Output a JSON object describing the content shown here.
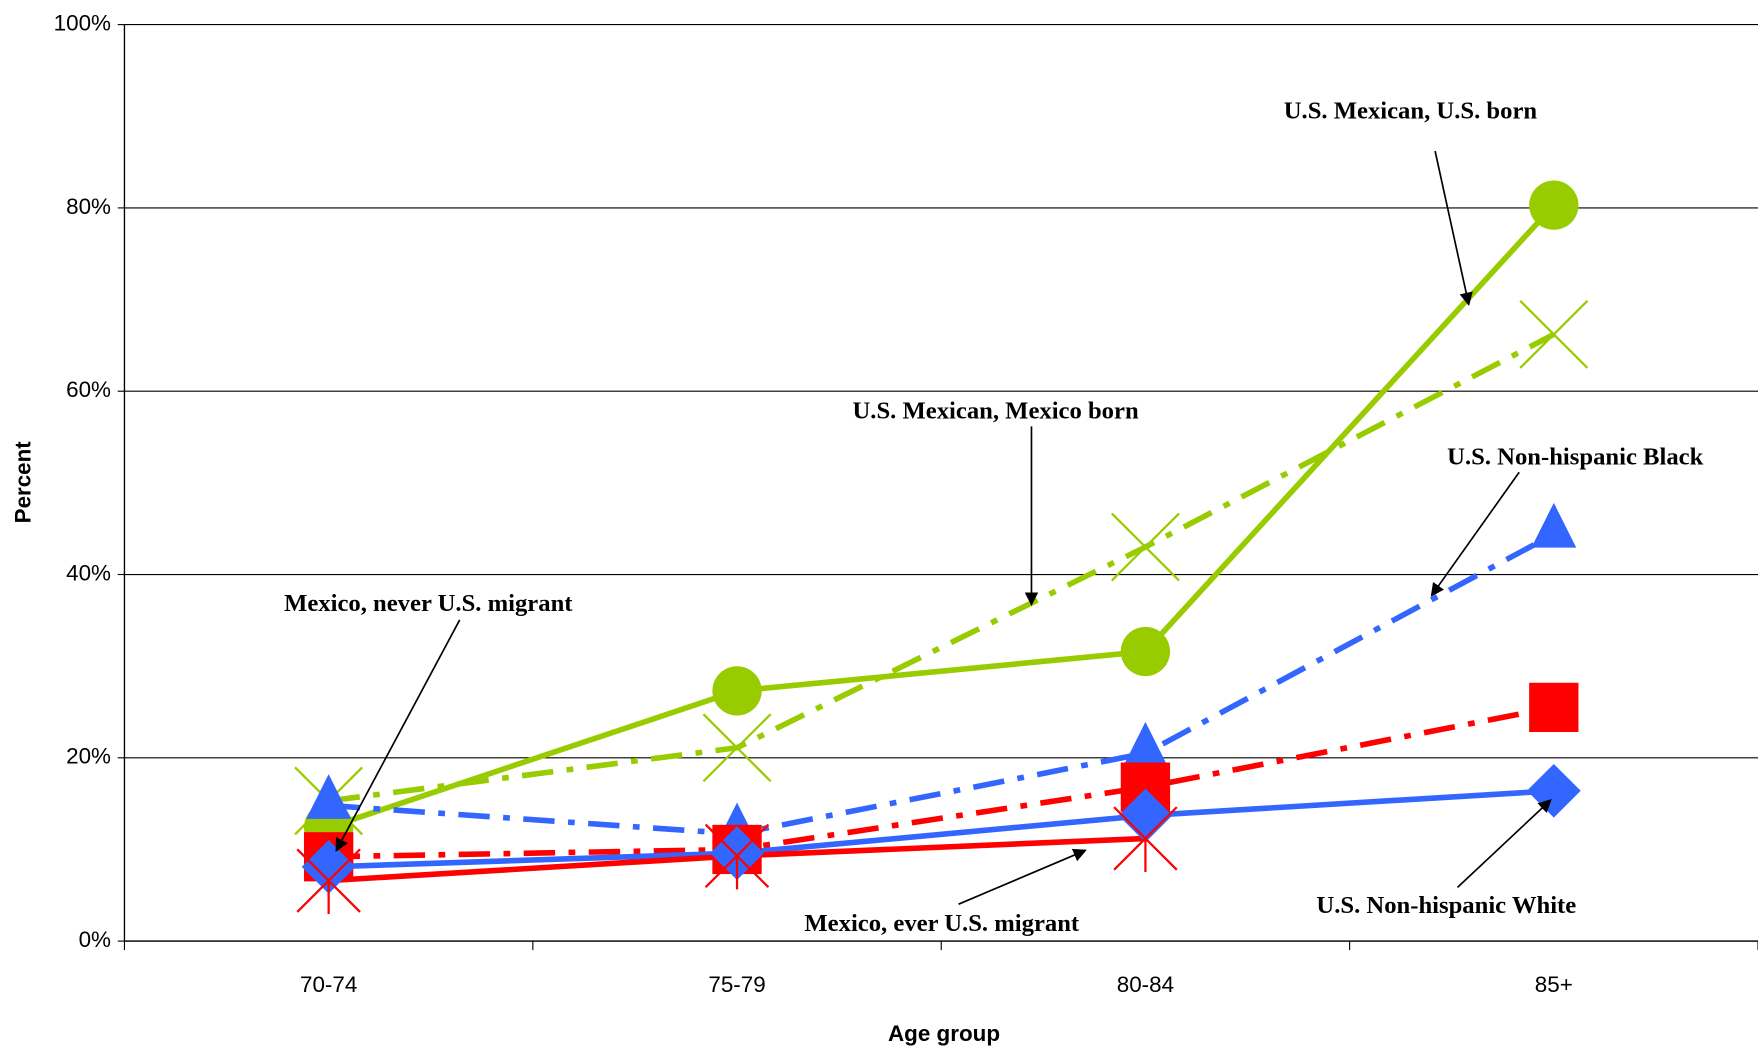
{
  "chart_data": {
    "type": "line",
    "x_label": "Age group",
    "y_label": "Percent",
    "categories": [
      "70-74",
      "75-79",
      "80-84",
      "85+"
    ],
    "ylim": [
      0,
      100
    ],
    "yticks": [
      {
        "value": 0,
        "label": "0%"
      },
      {
        "value": 20,
        "label": "20%"
      },
      {
        "value": 40,
        "label": "40%"
      },
      {
        "value": 60,
        "label": "60%"
      },
      {
        "value": 80,
        "label": "80%"
      },
      {
        "value": 100,
        "label": "100%"
      }
    ],
    "grid": true,
    "series": [
      {
        "name": "U.S. Mexican, U.S. born",
        "color": "#99cc00",
        "line": "solid",
        "marker": "circle",
        "values": [
          12.4,
          27.3,
          31.6,
          80.3
        ]
      },
      {
        "name": "U.S. Mexican, Mexico born",
        "color": "#99cc00",
        "line": "dashdot",
        "marker": "x",
        "values": [
          15.3,
          21.1,
          43.0,
          66.2
        ]
      },
      {
        "name": "U.S. Non-hispanic Black",
        "color": "#3366ff",
        "line": "dashdot",
        "marker": "triangle",
        "values": [
          14.8,
          11.7,
          20.5,
          44.4
        ]
      },
      {
        "name": "Mexico, never U.S. migrant",
        "color": "#ff0000",
        "line": "dashdot",
        "marker": "square",
        "values": [
          9.2,
          10.0,
          16.8,
          25.5
        ]
      },
      {
        "name": "U.S. Non-hispanic White",
        "color": "#3366ff",
        "line": "solid",
        "marker": "diamond",
        "values": [
          8.1,
          9.6,
          13.7,
          16.4
        ]
      },
      {
        "name": "Mexico, ever U.S. migrant",
        "color": "#ff0000",
        "line": "solid",
        "marker": "asterisk",
        "values": [
          6.6,
          9.3,
          11.2,
          null
        ]
      }
    ]
  }
}
